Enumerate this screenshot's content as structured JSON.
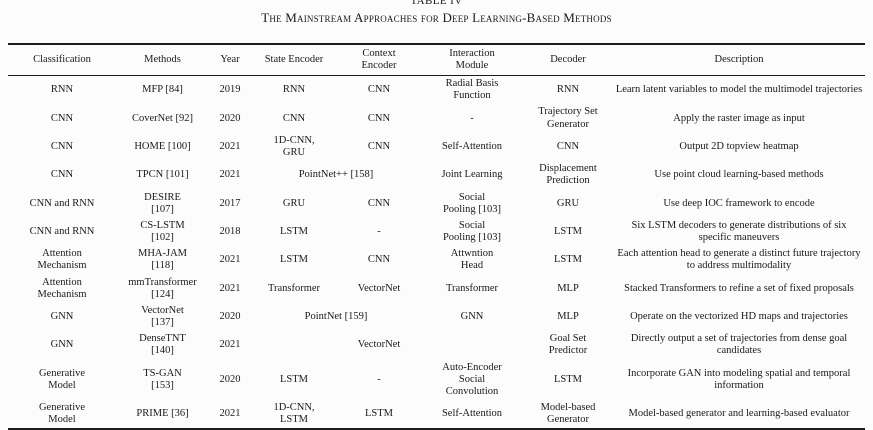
{
  "title": {
    "label": "TABLE IV",
    "caption": "The Mainstream Approaches for Deep Learning-Based Methods"
  },
  "table": {
    "columns": [
      "Classification",
      "Methods",
      "Year",
      "State Encoder",
      "Context\nEncoder",
      "Interaction\nModule",
      "Decoder",
      "Description"
    ],
    "rows": [
      {
        "cells": [
          {
            "t": "RNN"
          },
          {
            "t": "MFP [84]"
          },
          {
            "t": "2019"
          },
          {
            "t": "RNN"
          },
          {
            "t": "CNN"
          },
          {
            "t": "Radial Basis\nFunction"
          },
          {
            "t": "RNN"
          },
          {
            "t": "Learn latent variables to model the multimodel trajectories"
          }
        ]
      },
      {
        "cells": [
          {
            "t": "CNN"
          },
          {
            "t": "CoverNet [92]"
          },
          {
            "t": "2020"
          },
          {
            "t": "CNN"
          },
          {
            "t": "CNN"
          },
          {
            "t": "-"
          },
          {
            "t": "Trajectory Set\nGenerator"
          },
          {
            "t": "Apply the raster image as input"
          }
        ]
      },
      {
        "cells": [
          {
            "t": "CNN"
          },
          {
            "t": "HOME [100]"
          },
          {
            "t": "2021"
          },
          {
            "t": "1D-CNN,\nGRU"
          },
          {
            "t": "CNN"
          },
          {
            "t": "Self-Attention"
          },
          {
            "t": "CNN"
          },
          {
            "t": "Output 2D topview heatmap"
          }
        ]
      },
      {
        "cells": [
          {
            "t": "CNN"
          },
          {
            "t": "TPCN [101]"
          },
          {
            "t": "2021"
          },
          {
            "t": "PointNet++ [158]",
            "colspan": 2
          },
          {
            "t": "Joint Learning"
          },
          {
            "t": "Displacement\nPrediction"
          },
          {
            "t": "Use point cloud learning-based methods"
          }
        ]
      },
      {
        "cells": [
          {
            "t": "CNN and RNN"
          },
          {
            "t": "DESIRE\n[107]"
          },
          {
            "t": "2017"
          },
          {
            "t": "GRU"
          },
          {
            "t": "CNN"
          },
          {
            "t": "Social\nPooling [103]"
          },
          {
            "t": "GRU"
          },
          {
            "t": "Use deep IOC framework to encode"
          }
        ]
      },
      {
        "cells": [
          {
            "t": "CNN and RNN"
          },
          {
            "t": "CS-LSTM\n[102]"
          },
          {
            "t": "2018"
          },
          {
            "t": "LSTM"
          },
          {
            "t": "-"
          },
          {
            "t": "Social\nPooling [103]"
          },
          {
            "t": "LSTM"
          },
          {
            "t": "Six LSTM decoders to generate distributions of six specific maneuvers"
          }
        ]
      },
      {
        "cells": [
          {
            "t": "Attention\nMechanism"
          },
          {
            "t": "MHA-JAM\n[118]"
          },
          {
            "t": "2021"
          },
          {
            "t": "LSTM"
          },
          {
            "t": "CNN"
          },
          {
            "t": "Attwntion\nHead"
          },
          {
            "t": "LSTM"
          },
          {
            "t": "Each attention head to generate a distinct future trajectory to address multimodality"
          }
        ]
      },
      {
        "cells": [
          {
            "t": "Attention\nMechanism"
          },
          {
            "t": "mmTransformer\n[124]"
          },
          {
            "t": "2021"
          },
          {
            "t": "Transformer"
          },
          {
            "t": "VectorNet"
          },
          {
            "t": "Transformer"
          },
          {
            "t": "MLP"
          },
          {
            "t": "Stacked Transformers to refine a set of fixed proposals"
          }
        ]
      },
      {
        "cells": [
          {
            "t": "GNN"
          },
          {
            "t": "VectorNet\n[137]"
          },
          {
            "t": "2020"
          },
          {
            "t": "PointNet [159]",
            "colspan": 2
          },
          {
            "t": "GNN"
          },
          {
            "t": "MLP"
          },
          {
            "t": "Operate on the vectorized HD maps and trajectories"
          }
        ]
      },
      {
        "cells": [
          {
            "t": "GNN"
          },
          {
            "t": "DenseTNT\n[140]"
          },
          {
            "t": "2021"
          },
          {
            "t": ""
          },
          {
            "t": "VectorNet"
          },
          {
            "t": ""
          },
          {
            "t": "Goal Set\nPredictor"
          },
          {
            "t": "Directly output a set of trajectories from dense goal candidates"
          }
        ]
      },
      {
        "cells": [
          {
            "t": "Generative\nModel"
          },
          {
            "t": "TS-GAN\n[153]"
          },
          {
            "t": "2020"
          },
          {
            "t": "LSTM"
          },
          {
            "t": "-"
          },
          {
            "t": "Auto-Encoder\nSocial\nConvolution"
          },
          {
            "t": "LSTM"
          },
          {
            "t": "Incorporate GAN into modeling spatial and temporal information"
          }
        ]
      },
      {
        "cells": [
          {
            "t": "Generative\nModel"
          },
          {
            "t": "PRIME [36]"
          },
          {
            "t": "2021"
          },
          {
            "t": "1D-CNN,\nLSTM"
          },
          {
            "t": "LSTM"
          },
          {
            "t": "Self-Attention"
          },
          {
            "t": "Model-based\nGenerator"
          },
          {
            "t": "Model-based generator and learning-based evaluator"
          }
        ]
      }
    ]
  }
}
